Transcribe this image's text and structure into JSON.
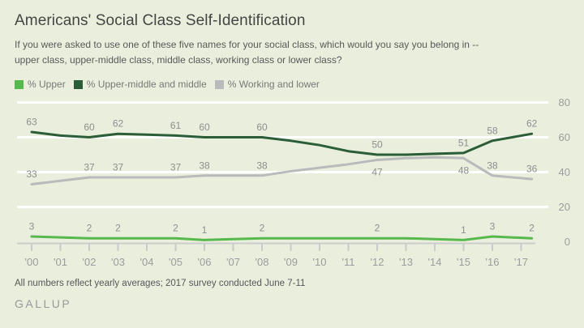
{
  "page": {
    "background_color": "#e9efdc"
  },
  "header": {
    "title": "Americans' Social Class Self-Identification",
    "subtitle_lines": [
      "If you were asked to use one of these five names for your social class, which would you say you belong in --",
      "upper class, upper-middle class, middle class, working class or lower class?"
    ]
  },
  "footer": {
    "note": "All numbers reflect yearly averages; 2017 survey conducted June 7-11",
    "brand": "GALLUP"
  },
  "chart_data": {
    "type": "line",
    "title": "Americans' Social Class Self-Identification",
    "xlabel": "",
    "ylabel": "",
    "ylim": [
      0,
      80
    ],
    "y_ticks": [
      0,
      20,
      40,
      60,
      80
    ],
    "grid": "horizontal-white-gridlines",
    "legend_position": "top-left",
    "x_tick_labels": [
      "'00",
      "'01",
      "'02",
      "'03",
      "'04",
      "'05",
      "'06",
      "'07",
      "'08",
      "'09",
      "'10",
      "'11",
      "'12",
      "'13",
      "'14",
      "'15",
      "'16",
      "'17"
    ],
    "x_offsets": [
      0,
      1,
      2,
      3,
      4,
      5,
      6,
      7,
      8,
      9,
      10,
      11,
      12,
      13,
      14,
      15,
      16,
      17.37
    ],
    "series": [
      {
        "name": "% Upper",
        "color": "#57b94b",
        "values": [
          3,
          2.5,
          2,
          2,
          2,
          2,
          1,
          1.5,
          2,
          2,
          2,
          2,
          2,
          2,
          1.5,
          1,
          3,
          2
        ],
        "callouts": [
          {
            "i": 0,
            "v": 3
          },
          {
            "i": 2,
            "v": 2
          },
          {
            "i": 3,
            "v": 2
          },
          {
            "i": 5,
            "v": 2
          },
          {
            "i": 6,
            "v": 1
          },
          {
            "i": 8,
            "v": 2
          },
          {
            "i": 12,
            "v": 2
          },
          {
            "i": 15,
            "v": 1
          },
          {
            "i": 16,
            "v": 3
          },
          {
            "i": 17,
            "v": 2
          }
        ]
      },
      {
        "name": "% Upper-middle and middle",
        "color": "#2b5d38",
        "values": [
          63,
          61,
          60,
          62,
          61.5,
          61,
          60,
          60,
          60,
          58,
          55.5,
          52,
          50,
          50,
          50.5,
          51,
          58,
          62
        ],
        "callouts": [
          {
            "i": 0,
            "v": 63
          },
          {
            "i": 2,
            "v": 60
          },
          {
            "i": 3,
            "v": 62
          },
          {
            "i": 5,
            "v": 61
          },
          {
            "i": 6,
            "v": 60
          },
          {
            "i": 8,
            "v": 60
          },
          {
            "i": 12,
            "v": 50
          },
          {
            "i": 15,
            "v": 51
          },
          {
            "i": 16,
            "v": 58
          },
          {
            "i": 17,
            "v": 62
          }
        ]
      },
      {
        "name": "% Working and lower",
        "color": "#b9babb",
        "values": [
          33,
          35,
          37,
          37,
          37,
          37,
          38,
          38,
          38,
          40.5,
          42.5,
          44.5,
          47,
          48,
          48.5,
          48,
          38,
          36
        ],
        "callouts": [
          {
            "i": 0,
            "v": 33
          },
          {
            "i": 2,
            "v": 37
          },
          {
            "i": 3,
            "v": 37
          },
          {
            "i": 5,
            "v": 37
          },
          {
            "i": 6,
            "v": 38
          },
          {
            "i": 8,
            "v": 38
          },
          {
            "i": 12,
            "v": 47,
            "below": true
          },
          {
            "i": 15,
            "v": 48,
            "below": true
          },
          {
            "i": 16,
            "v": 38
          },
          {
            "i": 17,
            "v": 36
          }
        ]
      }
    ]
  }
}
